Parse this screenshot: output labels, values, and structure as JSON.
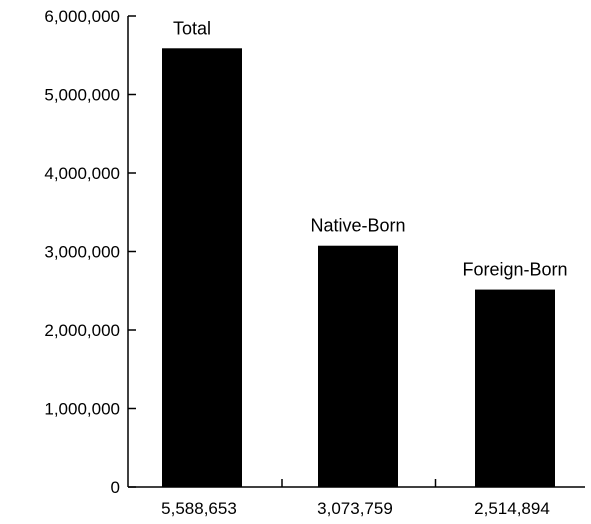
{
  "chart_data": {
    "type": "bar",
    "categories": [
      "Total",
      "Native-Born",
      "Foreign-Born"
    ],
    "values": [
      5588653,
      3073759,
      2514894
    ],
    "value_labels": [
      "5,588,653",
      "3,073,759",
      "2,514,894"
    ],
    "title": "",
    "xlabel": "",
    "ylabel": "",
    "ylim": [
      0,
      6000000
    ],
    "yticks": [
      0,
      1000000,
      2000000,
      3000000,
      4000000,
      5000000,
      6000000
    ],
    "ytick_labels": [
      "0",
      "1,000,000",
      "2,000,000",
      "3,000,000",
      "4,000,000",
      "5,000,000",
      "6,000,000"
    ],
    "grid": false,
    "legend": "none",
    "bar_color": "#000000",
    "axis_color": "#000000"
  }
}
